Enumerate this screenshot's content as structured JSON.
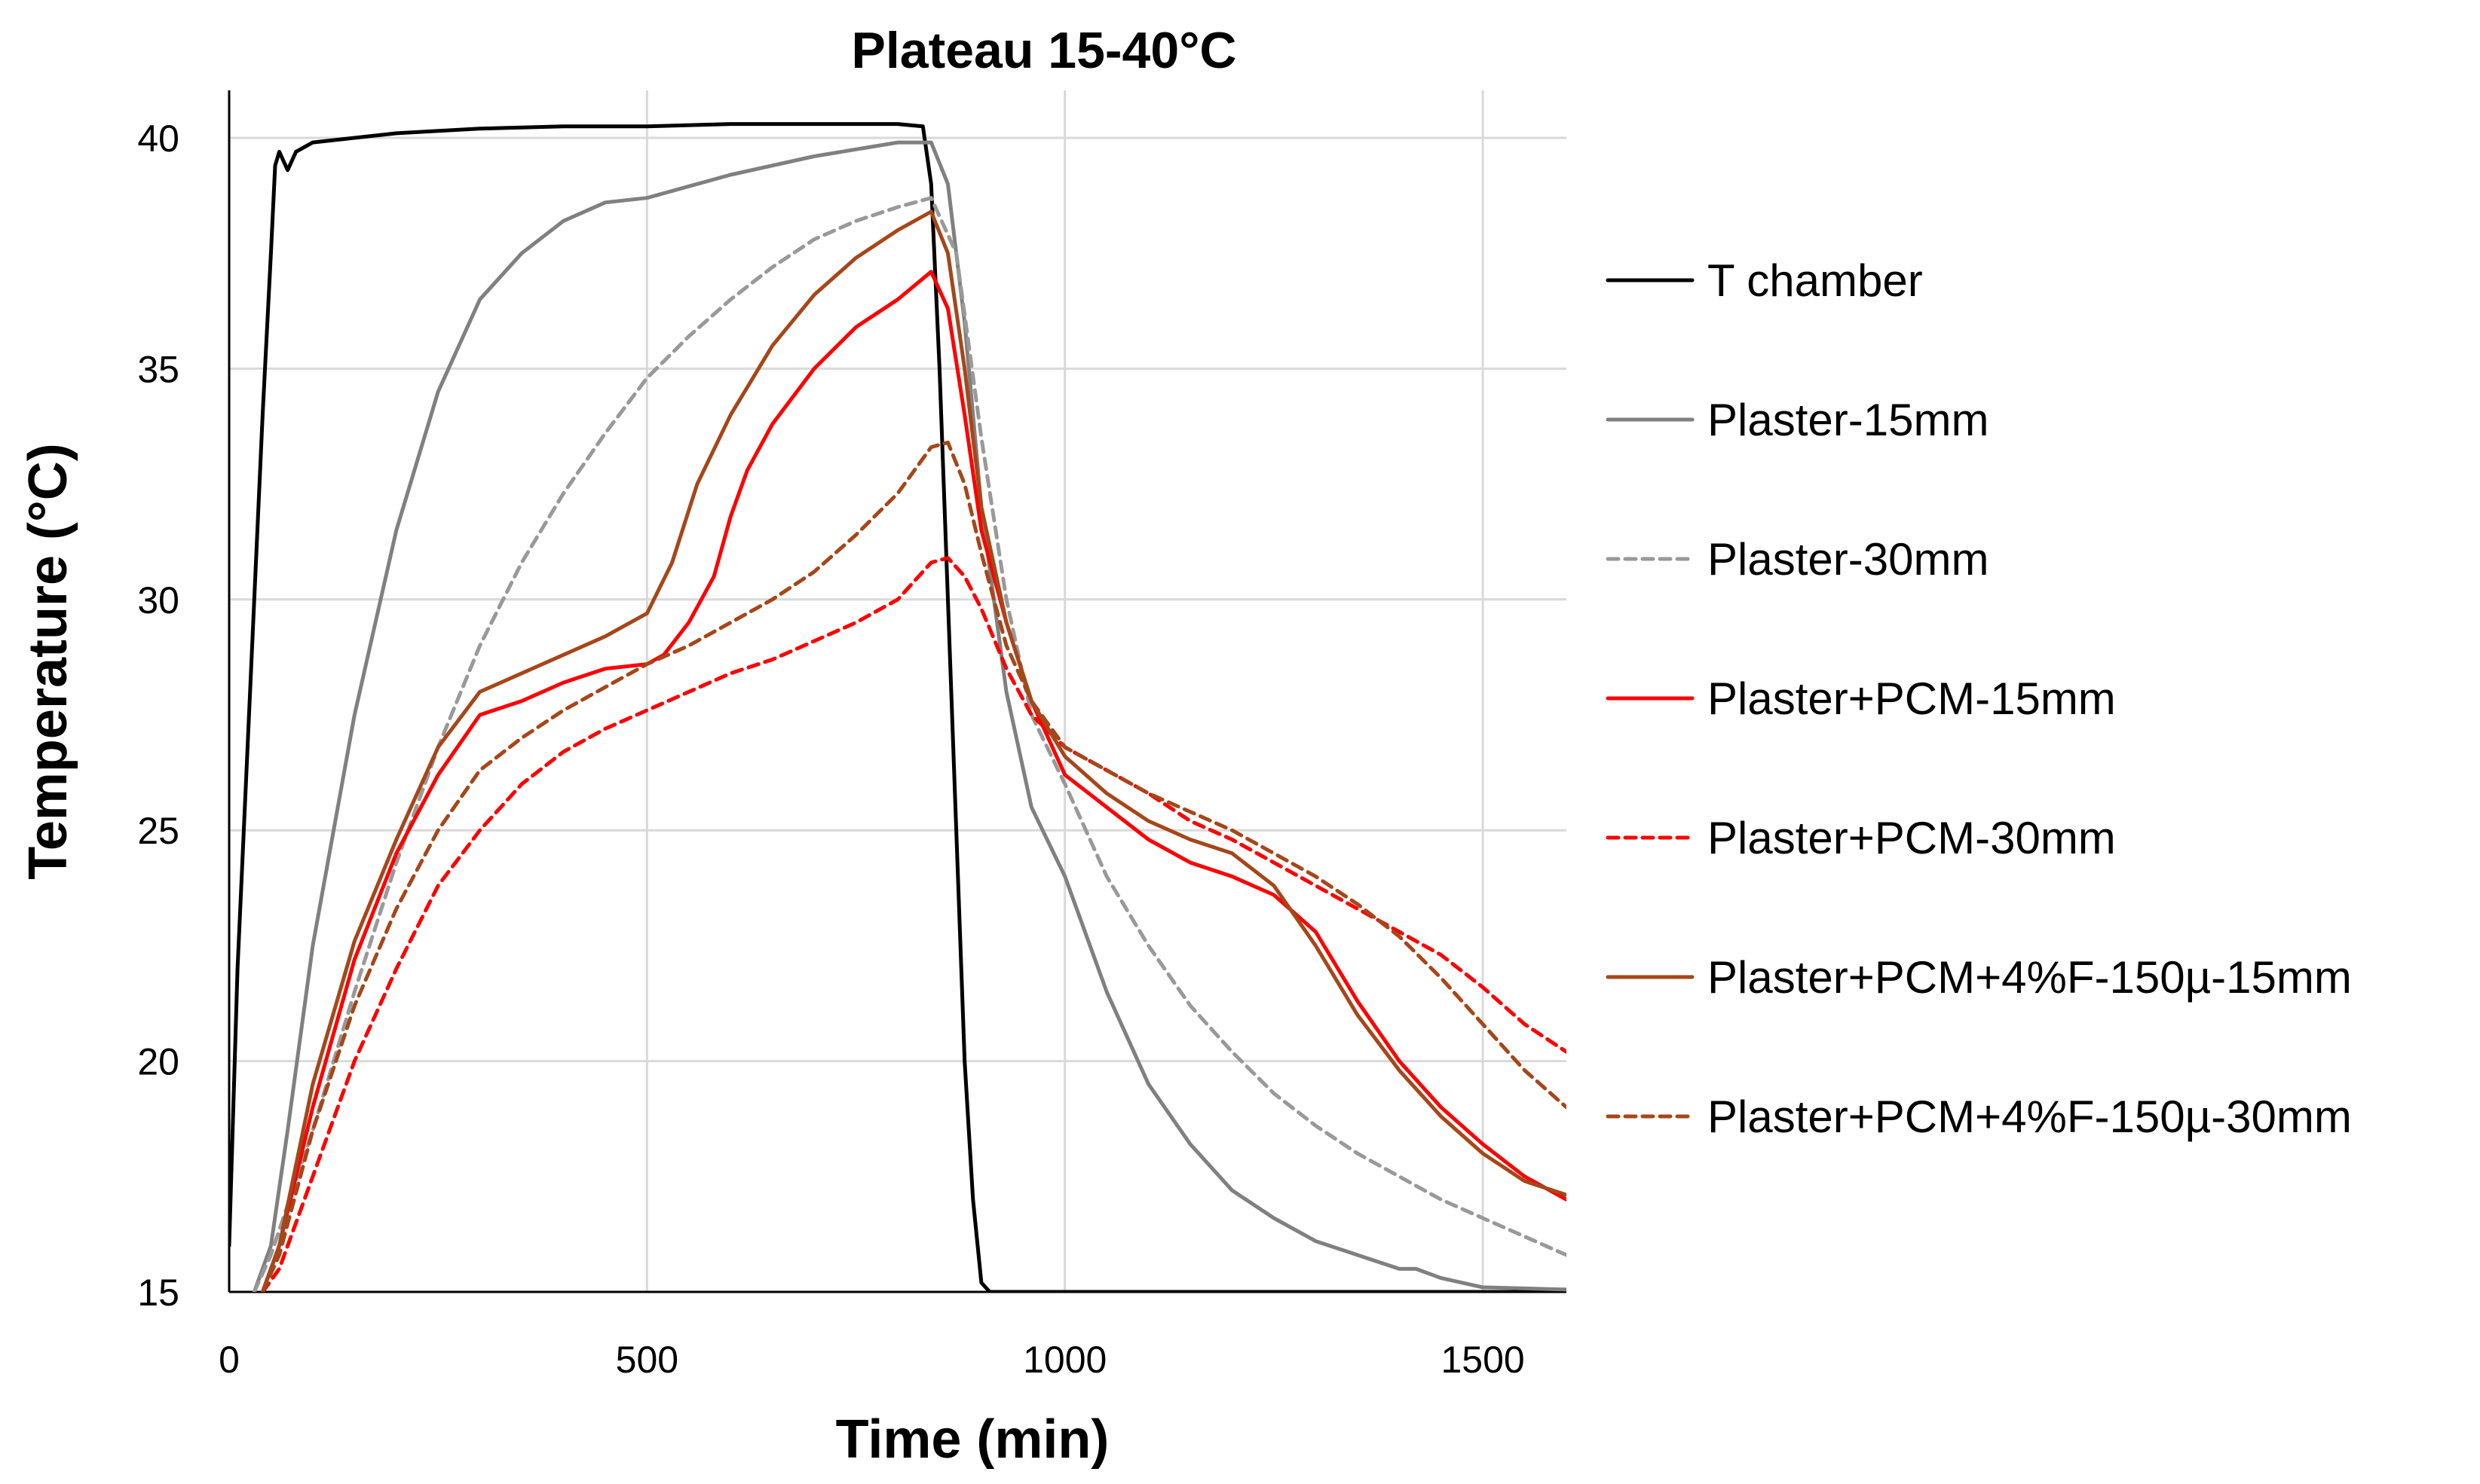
{
  "chart_data": {
    "type": "line",
    "title": "Plateau 15-40°C",
    "xlabel": "Time (min)",
    "ylabel": "Temperature (°C)",
    "xlim": [
      0,
      1600
    ],
    "ylim": [
      15,
      41
    ],
    "xticks": [
      0,
      500,
      1000,
      1500
    ],
    "yticks": [
      15,
      20,
      25,
      30,
      35,
      40
    ],
    "xtick_labels": [
      "0",
      "500",
      "1000",
      "1500"
    ],
    "ytick_labels": [
      "15",
      "20",
      "25",
      "30",
      "35",
      "40"
    ],
    "grid": true,
    "legend_position": "right",
    "series": [
      {
        "name": "T chamber",
        "color": "#000000",
        "dash": "solid",
        "points": [
          [
            0,
            16
          ],
          [
            10,
            22
          ],
          [
            20,
            26
          ],
          [
            30,
            30
          ],
          [
            40,
            34
          ],
          [
            50,
            37.5
          ],
          [
            55,
            39.4
          ],
          [
            60,
            39.7
          ],
          [
            70,
            39.3
          ],
          [
            80,
            39.7
          ],
          [
            100,
            39.9
          ],
          [
            150,
            40.0
          ],
          [
            200,
            40.1
          ],
          [
            300,
            40.2
          ],
          [
            400,
            40.25
          ],
          [
            500,
            40.25
          ],
          [
            600,
            40.3
          ],
          [
            700,
            40.3
          ],
          [
            800,
            40.3
          ],
          [
            830,
            40.25
          ],
          [
            840,
            39
          ],
          [
            850,
            35
          ],
          [
            860,
            30
          ],
          [
            870,
            25
          ],
          [
            880,
            20
          ],
          [
            890,
            17
          ],
          [
            900,
            15.2
          ],
          [
            910,
            15
          ],
          [
            1600,
            15
          ]
        ]
      },
      {
        "name": "Plaster-15mm",
        "color": "#808080",
        "dash": "solid",
        "points": [
          [
            30,
            15
          ],
          [
            50,
            16
          ],
          [
            70,
            18.5
          ],
          [
            100,
            22.5
          ],
          [
            150,
            27.5
          ],
          [
            200,
            31.5
          ],
          [
            250,
            34.5
          ],
          [
            300,
            36.5
          ],
          [
            350,
            37.5
          ],
          [
            400,
            38.2
          ],
          [
            450,
            38.6
          ],
          [
            500,
            38.7
          ],
          [
            600,
            39.2
          ],
          [
            700,
            39.6
          ],
          [
            800,
            39.9
          ],
          [
            840,
            39.9
          ],
          [
            860,
            39
          ],
          [
            880,
            36
          ],
          [
            900,
            32
          ],
          [
            930,
            28
          ],
          [
            960,
            25.5
          ],
          [
            1000,
            24
          ],
          [
            1050,
            21.5
          ],
          [
            1100,
            19.5
          ],
          [
            1150,
            18.2
          ],
          [
            1200,
            17.2
          ],
          [
            1250,
            16.6
          ],
          [
            1300,
            16.1
          ],
          [
            1350,
            15.8
          ],
          [
            1400,
            15.5
          ],
          [
            1420,
            15.5
          ],
          [
            1450,
            15.3
          ],
          [
            1500,
            15.1
          ],
          [
            1600,
            15.05
          ]
        ]
      },
      {
        "name": "Plaster-30mm",
        "color": "#999999",
        "dash": "dashed",
        "points": [
          [
            30,
            15
          ],
          [
            50,
            15.8
          ],
          [
            100,
            18.5
          ],
          [
            150,
            21.5
          ],
          [
            200,
            24.3
          ],
          [
            250,
            26.8
          ],
          [
            300,
            29
          ],
          [
            350,
            30.8
          ],
          [
            400,
            32.3
          ],
          [
            450,
            33.6
          ],
          [
            500,
            34.8
          ],
          [
            550,
            35.7
          ],
          [
            600,
            36.5
          ],
          [
            650,
            37.2
          ],
          [
            700,
            37.8
          ],
          [
            750,
            38.2
          ],
          [
            800,
            38.5
          ],
          [
            840,
            38.7
          ],
          [
            870,
            37.5
          ],
          [
            900,
            33.5
          ],
          [
            930,
            30
          ],
          [
            960,
            27.5
          ],
          [
            1000,
            26
          ],
          [
            1050,
            24
          ],
          [
            1100,
            22.5
          ],
          [
            1150,
            21.2
          ],
          [
            1200,
            20.2
          ],
          [
            1250,
            19.3
          ],
          [
            1300,
            18.6
          ],
          [
            1350,
            18
          ],
          [
            1400,
            17.5
          ],
          [
            1450,
            17
          ],
          [
            1500,
            16.6
          ],
          [
            1550,
            16.2
          ],
          [
            1600,
            15.8
          ]
        ]
      },
      {
        "name": "Plaster+PCM-15mm",
        "color": "#ff0000",
        "dash": "solid",
        "points": [
          [
            40,
            15
          ],
          [
            60,
            16
          ],
          [
            100,
            19
          ],
          [
            150,
            22.2
          ],
          [
            200,
            24.5
          ],
          [
            250,
            26.2
          ],
          [
            300,
            27.5
          ],
          [
            350,
            27.8
          ],
          [
            400,
            28.2
          ],
          [
            450,
            28.5
          ],
          [
            500,
            28.6
          ],
          [
            520,
            28.8
          ],
          [
            550,
            29.5
          ],
          [
            580,
            30.5
          ],
          [
            600,
            31.8
          ],
          [
            620,
            32.8
          ],
          [
            650,
            33.8
          ],
          [
            700,
            35
          ],
          [
            750,
            35.9
          ],
          [
            800,
            36.5
          ],
          [
            840,
            37.1
          ],
          [
            860,
            36.3
          ],
          [
            880,
            34
          ],
          [
            900,
            31.5
          ],
          [
            930,
            29.5
          ],
          [
            960,
            27.8
          ],
          [
            1000,
            26.2
          ],
          [
            1050,
            25.5
          ],
          [
            1100,
            24.8
          ],
          [
            1150,
            24.3
          ],
          [
            1200,
            24
          ],
          [
            1250,
            23.6
          ],
          [
            1300,
            22.8
          ],
          [
            1350,
            21.3
          ],
          [
            1400,
            20
          ],
          [
            1450,
            19
          ],
          [
            1500,
            18.2
          ],
          [
            1550,
            17.5
          ],
          [
            1600,
            17
          ]
        ]
      },
      {
        "name": "Plaster+PCM-30mm",
        "color": "#ff0000",
        "dash": "dashed",
        "points": [
          [
            40,
            15
          ],
          [
            60,
            15.5
          ],
          [
            100,
            17.5
          ],
          [
            150,
            20
          ],
          [
            200,
            22
          ],
          [
            250,
            23.8
          ],
          [
            300,
            25
          ],
          [
            350,
            26
          ],
          [
            400,
            26.7
          ],
          [
            450,
            27.2
          ],
          [
            500,
            27.6
          ],
          [
            550,
            28
          ],
          [
            600,
            28.4
          ],
          [
            650,
            28.7
          ],
          [
            700,
            29.1
          ],
          [
            750,
            29.5
          ],
          [
            800,
            30
          ],
          [
            840,
            30.8
          ],
          [
            860,
            30.9
          ],
          [
            880,
            30.5
          ],
          [
            900,
            29.8
          ],
          [
            930,
            28.5
          ],
          [
            960,
            27.5
          ],
          [
            1000,
            26.8
          ],
          [
            1050,
            26.3
          ],
          [
            1100,
            25.8
          ],
          [
            1150,
            25.2
          ],
          [
            1200,
            24.8
          ],
          [
            1250,
            24.3
          ],
          [
            1300,
            23.8
          ],
          [
            1350,
            23.3
          ],
          [
            1400,
            22.8
          ],
          [
            1450,
            22.3
          ],
          [
            1500,
            21.6
          ],
          [
            1550,
            20.8
          ],
          [
            1600,
            20.2
          ]
        ]
      },
      {
        "name": "Plaster+PCM+4%F-150µ-15mm",
        "color": "#a5471a",
        "dash": "solid",
        "points": [
          [
            40,
            15
          ],
          [
            60,
            16
          ],
          [
            100,
            19.5
          ],
          [
            150,
            22.6
          ],
          [
            200,
            24.8
          ],
          [
            250,
            26.8
          ],
          [
            300,
            28
          ],
          [
            350,
            28.4
          ],
          [
            400,
            28.8
          ],
          [
            450,
            29.2
          ],
          [
            500,
            29.7
          ],
          [
            530,
            30.8
          ],
          [
            560,
            32.5
          ],
          [
            600,
            34
          ],
          [
            650,
            35.5
          ],
          [
            700,
            36.6
          ],
          [
            750,
            37.4
          ],
          [
            800,
            38
          ],
          [
            840,
            38.4
          ],
          [
            860,
            37.5
          ],
          [
            880,
            35
          ],
          [
            900,
            32
          ],
          [
            930,
            29.5
          ],
          [
            960,
            27.8
          ],
          [
            1000,
            26.6
          ],
          [
            1050,
            25.8
          ],
          [
            1100,
            25.2
          ],
          [
            1150,
            24.8
          ],
          [
            1200,
            24.5
          ],
          [
            1250,
            23.8
          ],
          [
            1300,
            22.5
          ],
          [
            1350,
            21
          ],
          [
            1400,
            19.8
          ],
          [
            1450,
            18.8
          ],
          [
            1500,
            18
          ],
          [
            1550,
            17.4
          ],
          [
            1600,
            17.1
          ]
        ]
      },
      {
        "name": "Plaster+PCM+4%F-150µ-30mm",
        "color": "#a5471a",
        "dash": "dashed",
        "points": [
          [
            40,
            15
          ],
          [
            60,
            15.8
          ],
          [
            100,
            18.5
          ],
          [
            150,
            21.2
          ],
          [
            200,
            23.3
          ],
          [
            250,
            25
          ],
          [
            300,
            26.3
          ],
          [
            350,
            27
          ],
          [
            400,
            27.6
          ],
          [
            450,
            28.1
          ],
          [
            500,
            28.6
          ],
          [
            550,
            29
          ],
          [
            600,
            29.5
          ],
          [
            650,
            30
          ],
          [
            700,
            30.6
          ],
          [
            750,
            31.4
          ],
          [
            800,
            32.3
          ],
          [
            840,
            33.3
          ],
          [
            860,
            33.4
          ],
          [
            880,
            32.5
          ],
          [
            900,
            31
          ],
          [
            930,
            29
          ],
          [
            960,
            27.8
          ],
          [
            1000,
            26.8
          ],
          [
            1050,
            26.3
          ],
          [
            1100,
            25.8
          ],
          [
            1150,
            25.4
          ],
          [
            1200,
            25
          ],
          [
            1250,
            24.5
          ],
          [
            1300,
            24
          ],
          [
            1350,
            23.4
          ],
          [
            1400,
            22.7
          ],
          [
            1450,
            21.8
          ],
          [
            1500,
            20.8
          ],
          [
            1550,
            19.8
          ],
          [
            1600,
            19
          ]
        ]
      }
    ]
  }
}
